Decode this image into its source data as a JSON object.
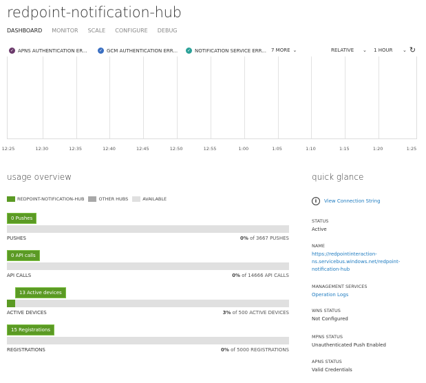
{
  "title": "redpoint-notification-hub",
  "tabs": [
    "DASHBOARD",
    "MONITOR",
    "SCALE",
    "CONFIGURE",
    "DEBUG"
  ],
  "metrics": [
    {
      "label": "APNS AUTHENTICATION ER...",
      "color": "#6b3a6b"
    },
    {
      "label": "GCM AUTHENTICATION ERR...",
      "color": "#3a6fc2"
    },
    {
      "label": "NOTIFICATION SERVICE ERR...",
      "color": "#2aa198"
    }
  ],
  "more": "7 MORE",
  "range_mode": "RELATIVE",
  "range": "1 HOUR",
  "time_ticks": [
    "12:25",
    "12:30",
    "12:35",
    "12:40",
    "12:45",
    "12:50",
    "12:55",
    "1:00",
    "1:05",
    "1:10",
    "1:15",
    "1:20",
    "1:25"
  ],
  "usage": {
    "title": "usage overview",
    "legend": [
      {
        "label": "REDPOINT-NOTIFICATION-HUB",
        "color": "#5b9a24"
      },
      {
        "label": "OTHER HUBS",
        "color": "#a8a8a8"
      },
      {
        "label": "AVAILABLE",
        "color": "#e0e0e0"
      }
    ],
    "rows": [
      {
        "flag": "0 Pushes",
        "label": "PUSHES",
        "pct": "0%",
        "of": " of 3667 PUSHES",
        "fill": 0
      },
      {
        "flag": "0 API calls",
        "label": "API CALLS",
        "pct": "0%",
        "of": " of 14666 API CALLS",
        "fill": 0
      },
      {
        "flag": "13 Active devices",
        "label": "ACTIVE DEVICES",
        "pct": "3%",
        "of": " of 500 ACTIVE DEVICES",
        "fill": 3
      },
      {
        "flag": "15 Registrations",
        "label": "REGISTRATIONS",
        "pct": "0%",
        "of": " of 5000 REGISTRATIONS",
        "fill": 0
      }
    ]
  },
  "quick": {
    "title": "quick glance",
    "conn": "View Connection String",
    "items": [
      {
        "k": "STATUS",
        "v": "Active",
        "link": false
      },
      {
        "k": "NAME",
        "v": "https://redpointinteraction-ns.servicebus.windows.net/redpoint-notification-hub",
        "link": true
      },
      {
        "k": "MANAGEMENT SERVICES",
        "v": "Operation Logs",
        "link": true
      },
      {
        "k": "WNS STATUS",
        "v": "Not Configured",
        "link": false
      },
      {
        "k": "MPNS STATUS",
        "v": "Unauthenticated Push Enabled",
        "link": false
      },
      {
        "k": "APNS STATUS",
        "v": "Valid Credentials",
        "link": false
      }
    ]
  }
}
